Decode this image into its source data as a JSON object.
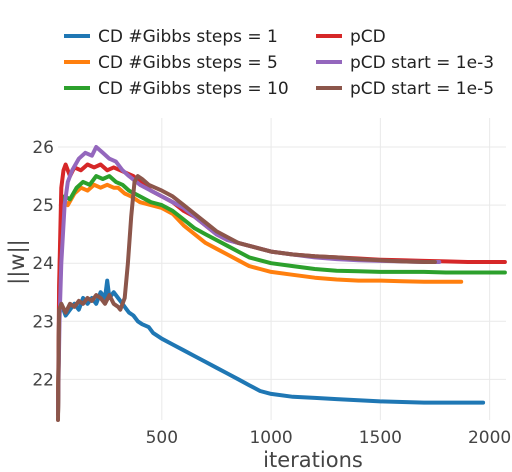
{
  "chart_data": {
    "type": "line",
    "title": "",
    "xlabel": "iterations",
    "ylabel": "||w||",
    "xlim": [
      25,
      2075
    ],
    "ylim": [
      21.3,
      26.5
    ],
    "x_ticks": [
      500,
      1000,
      1500,
      2000
    ],
    "y_ticks": [
      22,
      23,
      24,
      25,
      26
    ],
    "grid": true,
    "legend_placement": "top",
    "series": [
      {
        "name": "CD #Gibbs steps = 1",
        "color": "#1f77b4",
        "points": [
          [
            25,
            21.4
          ],
          [
            30,
            23.1
          ],
          [
            40,
            23.3
          ],
          [
            60,
            23.1
          ],
          [
            80,
            23.2
          ],
          [
            100,
            23.3
          ],
          [
            120,
            23.2
          ],
          [
            140,
            23.4
          ],
          [
            160,
            23.3
          ],
          [
            180,
            23.4
          ],
          [
            200,
            23.3
          ],
          [
            220,
            23.5
          ],
          [
            240,
            23.4
          ],
          [
            250,
            23.7
          ],
          [
            260,
            23.4
          ],
          [
            280,
            23.5
          ],
          [
            300,
            23.4
          ],
          [
            320,
            23.3
          ],
          [
            340,
            23.2
          ],
          [
            350,
            23.15
          ],
          [
            370,
            23.1
          ],
          [
            390,
            23.0
          ],
          [
            410,
            22.95
          ],
          [
            440,
            22.9
          ],
          [
            460,
            22.8
          ],
          [
            500,
            22.7
          ],
          [
            550,
            22.6
          ],
          [
            600,
            22.5
          ],
          [
            650,
            22.4
          ],
          [
            700,
            22.3
          ],
          [
            750,
            22.2
          ],
          [
            800,
            22.1
          ],
          [
            850,
            22.0
          ],
          [
            900,
            21.9
          ],
          [
            950,
            21.8
          ],
          [
            1000,
            21.75
          ],
          [
            1100,
            21.7
          ],
          [
            1200,
            21.68
          ],
          [
            1300,
            21.66
          ],
          [
            1400,
            21.64
          ],
          [
            1500,
            21.62
          ],
          [
            1600,
            21.61
          ],
          [
            1700,
            21.6
          ],
          [
            1800,
            21.6
          ],
          [
            1900,
            21.6
          ],
          [
            1970,
            21.6
          ]
        ]
      },
      {
        "name": "CD #Gibbs steps = 5",
        "color": "#ff7f0e",
        "points": [
          [
            25,
            21.4
          ],
          [
            32,
            23.5
          ],
          [
            40,
            24.8
          ],
          [
            50,
            25.1
          ],
          [
            70,
            25.0
          ],
          [
            100,
            25.2
          ],
          [
            130,
            25.3
          ],
          [
            160,
            25.25
          ],
          [
            190,
            25.35
          ],
          [
            220,
            25.3
          ],
          [
            250,
            25.35
          ],
          [
            280,
            25.3
          ],
          [
            300,
            25.3
          ],
          [
            330,
            25.2
          ],
          [
            360,
            25.15
          ],
          [
            400,
            25.05
          ],
          [
            450,
            25.0
          ],
          [
            500,
            24.95
          ],
          [
            550,
            24.85
          ],
          [
            600,
            24.65
          ],
          [
            650,
            24.5
          ],
          [
            700,
            24.35
          ],
          [
            750,
            24.25
          ],
          [
            800,
            24.15
          ],
          [
            850,
            24.05
          ],
          [
            900,
            23.95
          ],
          [
            950,
            23.9
          ],
          [
            1000,
            23.85
          ],
          [
            1100,
            23.8
          ],
          [
            1200,
            23.75
          ],
          [
            1300,
            23.72
          ],
          [
            1400,
            23.7
          ],
          [
            1500,
            23.7
          ],
          [
            1600,
            23.69
          ],
          [
            1700,
            23.68
          ],
          [
            1800,
            23.68
          ],
          [
            1870,
            23.68
          ]
        ]
      },
      {
        "name": "CD #Gibbs steps = 10",
        "color": "#2ca02c",
        "points": [
          [
            25,
            21.4
          ],
          [
            32,
            23.8
          ],
          [
            40,
            24.9
          ],
          [
            55,
            25.15
          ],
          [
            80,
            25.1
          ],
          [
            110,
            25.3
          ],
          [
            140,
            25.4
          ],
          [
            170,
            25.35
          ],
          [
            200,
            25.5
          ],
          [
            230,
            25.45
          ],
          [
            260,
            25.5
          ],
          [
            290,
            25.4
          ],
          [
            320,
            25.35
          ],
          [
            350,
            25.25
          ],
          [
            400,
            25.15
          ],
          [
            450,
            25.05
          ],
          [
            500,
            25.0
          ],
          [
            550,
            24.9
          ],
          [
            600,
            24.75
          ],
          [
            650,
            24.6
          ],
          [
            700,
            24.5
          ],
          [
            750,
            24.4
          ],
          [
            800,
            24.3
          ],
          [
            850,
            24.2
          ],
          [
            900,
            24.1
          ],
          [
            950,
            24.05
          ],
          [
            1000,
            24.0
          ],
          [
            1100,
            23.95
          ],
          [
            1200,
            23.9
          ],
          [
            1300,
            23.87
          ],
          [
            1400,
            23.86
          ],
          [
            1500,
            23.85
          ],
          [
            1600,
            23.85
          ],
          [
            1700,
            23.85
          ],
          [
            1800,
            23.84
          ],
          [
            1900,
            23.84
          ],
          [
            2000,
            23.84
          ],
          [
            2070,
            23.84
          ]
        ]
      },
      {
        "name": "pCD",
        "color": "#d62728",
        "points": [
          [
            25,
            21.4
          ],
          [
            30,
            23.6
          ],
          [
            40,
            25.3
          ],
          [
            50,
            25.6
          ],
          [
            60,
            25.7
          ],
          [
            80,
            25.5
          ],
          [
            100,
            25.65
          ],
          [
            130,
            25.6
          ],
          [
            160,
            25.7
          ],
          [
            190,
            25.65
          ],
          [
            220,
            25.7
          ],
          [
            250,
            25.6
          ],
          [
            280,
            25.65
          ],
          [
            310,
            25.6
          ],
          [
            340,
            25.55
          ],
          [
            370,
            25.5
          ],
          [
            400,
            25.4
          ],
          [
            450,
            25.25
          ],
          [
            500,
            25.15
          ],
          [
            550,
            25.05
          ],
          [
            600,
            24.9
          ],
          [
            650,
            24.8
          ],
          [
            700,
            24.65
          ],
          [
            750,
            24.5
          ],
          [
            800,
            24.4
          ],
          [
            850,
            24.35
          ],
          [
            900,
            24.3
          ],
          [
            950,
            24.25
          ],
          [
            1000,
            24.2
          ],
          [
            1100,
            24.15
          ],
          [
            1200,
            24.12
          ],
          [
            1300,
            24.1
          ],
          [
            1400,
            24.08
          ],
          [
            1500,
            24.06
          ],
          [
            1600,
            24.05
          ],
          [
            1700,
            24.04
          ],
          [
            1800,
            24.03
          ],
          [
            1900,
            24.02
          ],
          [
            2000,
            24.02
          ],
          [
            2070,
            24.02
          ]
        ]
      },
      {
        "name": "pCD start = 1e-3",
        "color": "#9467bd",
        "points": [
          [
            25,
            21.4
          ],
          [
            32,
            23.0
          ],
          [
            40,
            24.0
          ],
          [
            55,
            25.0
          ],
          [
            70,
            25.4
          ],
          [
            90,
            25.6
          ],
          [
            120,
            25.8
          ],
          [
            150,
            25.9
          ],
          [
            180,
            25.85
          ],
          [
            200,
            26.0
          ],
          [
            230,
            25.9
          ],
          [
            260,
            25.8
          ],
          [
            290,
            25.75
          ],
          [
            320,
            25.6
          ],
          [
            350,
            25.5
          ],
          [
            400,
            25.35
          ],
          [
            450,
            25.25
          ],
          [
            500,
            25.15
          ],
          [
            550,
            25.05
          ],
          [
            600,
            24.95
          ],
          [
            650,
            24.8
          ],
          [
            700,
            24.65
          ],
          [
            750,
            24.5
          ],
          [
            800,
            24.4
          ],
          [
            850,
            24.35
          ],
          [
            900,
            24.3
          ],
          [
            950,
            24.25
          ],
          [
            1000,
            24.2
          ],
          [
            1100,
            24.15
          ],
          [
            1200,
            24.1
          ],
          [
            1300,
            24.07
          ],
          [
            1400,
            24.05
          ],
          [
            1500,
            24.04
          ],
          [
            1600,
            24.03
          ],
          [
            1700,
            24.02
          ],
          [
            1770,
            24.02
          ]
        ]
      },
      {
        "name": "pCD start = 1e-5",
        "color": "#8c564b",
        "points": [
          [
            25,
            21.3
          ],
          [
            30,
            23.2
          ],
          [
            40,
            23.3
          ],
          [
            60,
            23.15
          ],
          [
            80,
            23.3
          ],
          [
            100,
            23.25
          ],
          [
            120,
            23.35
          ],
          [
            140,
            23.3
          ],
          [
            160,
            23.4
          ],
          [
            180,
            23.35
          ],
          [
            200,
            23.45
          ],
          [
            220,
            23.4
          ],
          [
            240,
            23.3
          ],
          [
            260,
            23.45
          ],
          [
            280,
            23.3
          ],
          [
            300,
            23.25
          ],
          [
            310,
            23.2
          ],
          [
            320,
            23.3
          ],
          [
            330,
            23.4
          ],
          [
            345,
            24.0
          ],
          [
            360,
            24.8
          ],
          [
            375,
            25.4
          ],
          [
            390,
            25.5
          ],
          [
            410,
            25.45
          ],
          [
            440,
            25.35
          ],
          [
            470,
            25.3
          ],
          [
            500,
            25.25
          ],
          [
            550,
            25.15
          ],
          [
            600,
            25.0
          ],
          [
            650,
            24.85
          ],
          [
            700,
            24.7
          ],
          [
            750,
            24.55
          ],
          [
            800,
            24.45
          ],
          [
            850,
            24.35
          ],
          [
            900,
            24.3
          ],
          [
            950,
            24.25
          ],
          [
            1000,
            24.2
          ],
          [
            1100,
            24.15
          ],
          [
            1200,
            24.12
          ],
          [
            1300,
            24.1
          ],
          [
            1400,
            24.07
          ],
          [
            1500,
            24.05
          ],
          [
            1600,
            24.03
          ],
          [
            1700,
            24.02
          ],
          [
            1750,
            24.02
          ]
        ]
      }
    ]
  }
}
